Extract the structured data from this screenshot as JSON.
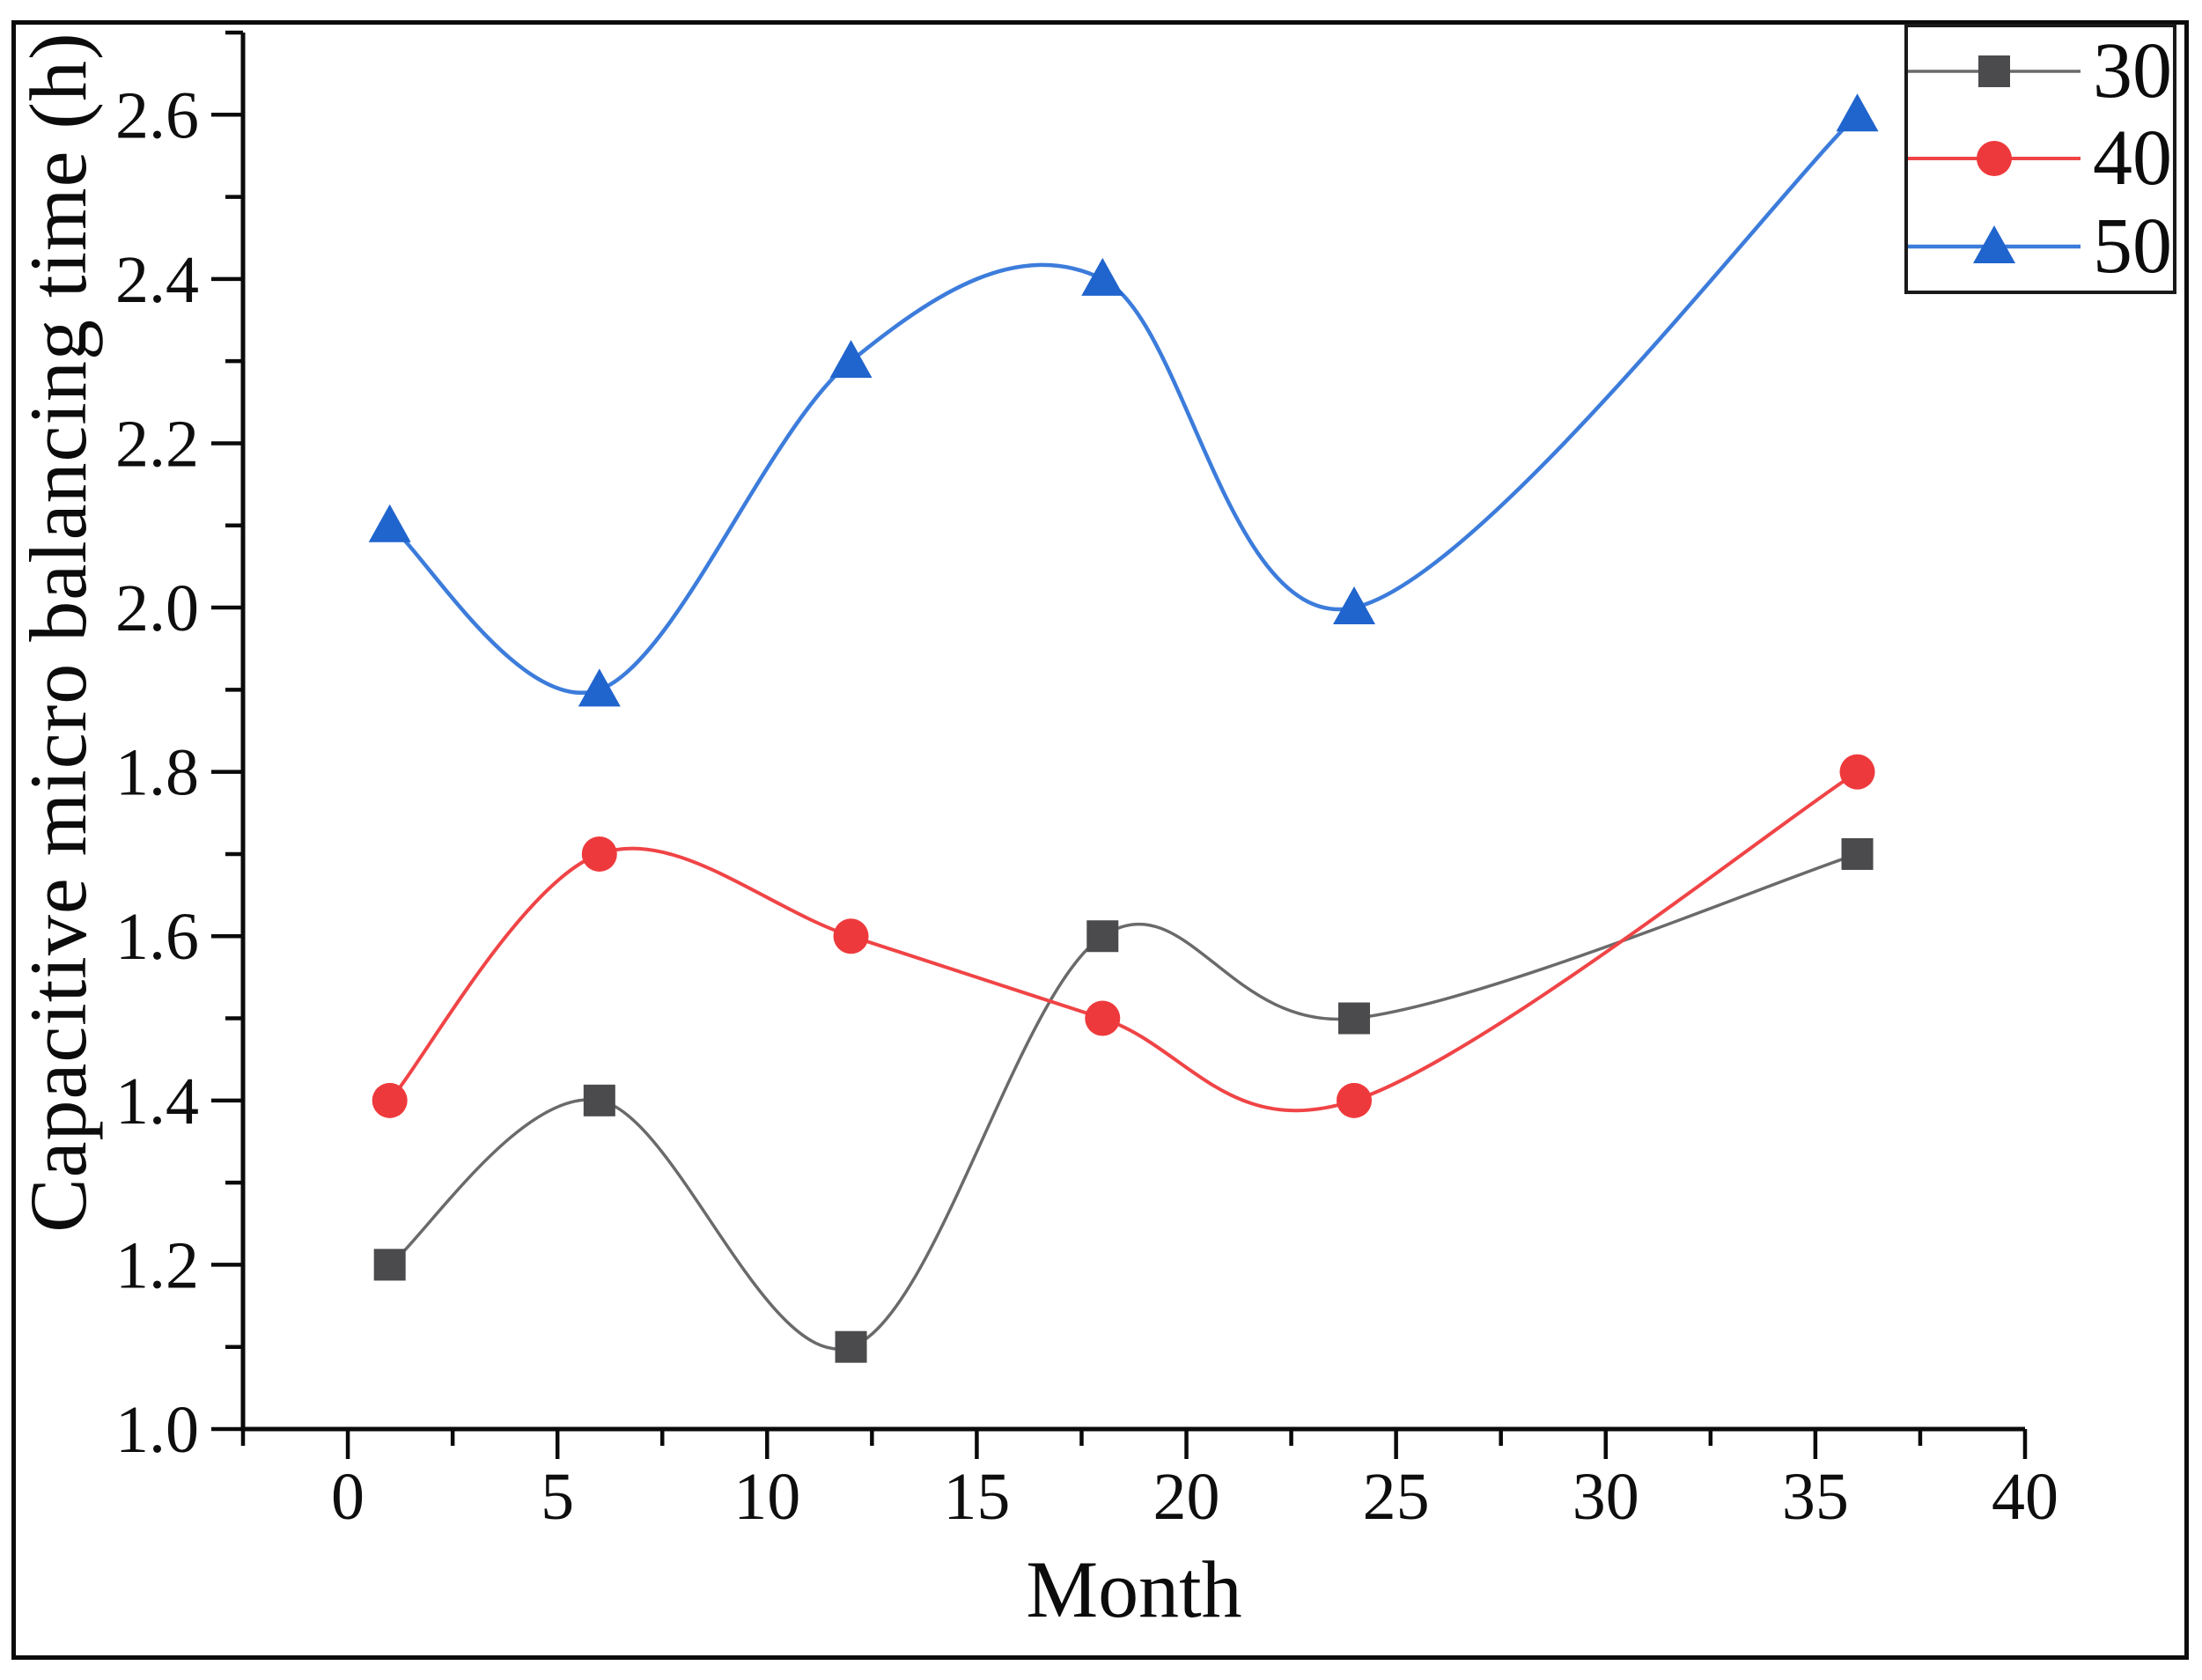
{
  "figure": {
    "background": "#ffffff",
    "border_color": "#0b0b0b"
  },
  "chart_data": {
    "type": "line",
    "title": "",
    "xlabel": "Month",
    "ylabel": "Capacitive micro balancing time (h)",
    "xlim": [
      -2.5,
      40
    ],
    "ylim": [
      1.0,
      2.7
    ],
    "x_tick_labels": [
      "0",
      "5",
      "10",
      "15",
      "20",
      "25",
      "30",
      "35",
      "40"
    ],
    "x_major_ticks": [
      0,
      5,
      10,
      15,
      20,
      25,
      30,
      35,
      40
    ],
    "x_minor_step": 2.5,
    "y_tick_labels": [
      "1.0",
      "1.2",
      "1.4",
      "1.6",
      "1.8",
      "2.0",
      "2.2",
      "2.4",
      "2.6"
    ],
    "y_major_ticks": [
      1.0,
      1.2,
      1.4,
      1.6,
      1.8,
      2.0,
      2.2,
      2.4,
      2.6
    ],
    "y_minor_step": 0.1,
    "grid": false,
    "legend_position": "top-right",
    "curve_style": "smooth-spline",
    "x": [
      1,
      6,
      12,
      18,
      24,
      36
    ],
    "series": [
      {
        "name": "30",
        "marker": "square",
        "marker_color": "#4b4b4e",
        "line_color": "#6a6a6a",
        "line_width": 3.5,
        "values": [
          1.2,
          1.4,
          1.1,
          1.6,
          1.5,
          1.7
        ]
      },
      {
        "name": "40",
        "marker": "circle",
        "marker_color": "#ee393c",
        "line_color": "#f04застав446",
        "line_width": 4,
        "values": [
          1.4,
          1.7,
          1.6,
          1.5,
          1.4,
          1.8
        ]
      },
      {
        "name": "50",
        "marker": "triangle",
        "marker_color": "#2064cd",
        "line_color": "#3c7cdb",
        "line_width": 4.5,
        "values": [
          2.1,
          1.9,
          2.3,
          2.4,
          2.0,
          2.6
        ]
      }
    ],
    "axis_color": "#0a0a0a",
    "tick_label_color": "#0e0e0e"
  }
}
